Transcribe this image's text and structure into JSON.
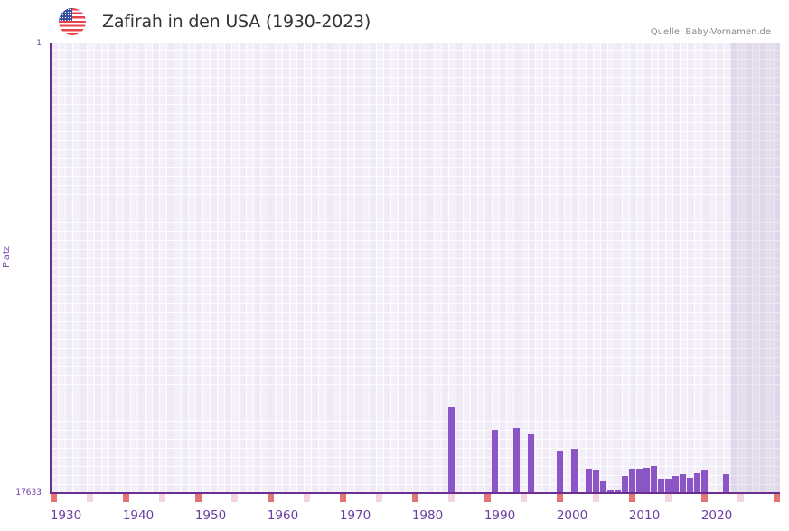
{
  "header": {
    "flag_icon": "us-flag-icon",
    "title": "Zafirah in den USA (1930-2023)",
    "source": "Quelle: Baby-Vornamen.de"
  },
  "chart_data": {
    "type": "bar",
    "title": "Zafirah in den USA (1930-2023)",
    "xlabel": "",
    "ylabel": "Platz",
    "y_inverted": true,
    "ylim": [
      17633,
      1
    ],
    "y_ticks": [
      "1",
      "17633"
    ],
    "x_range": [
      1928,
      2028
    ],
    "x_ticks": [
      "1930",
      "1940",
      "1950",
      "1960",
      "1970",
      "1980",
      "1990",
      "2000",
      "2010",
      "2020"
    ],
    "grid": true,
    "future_shaded_from": 2022,
    "colors": {
      "bar": "#8b55c6",
      "axis": "#6b2f91",
      "decade_marker": "#e57373",
      "half_decade_marker": "#f5d5dd",
      "plot_bg": "#efe9f8"
    },
    "categories": [
      1983,
      1989,
      1992,
      1994,
      1998,
      2000,
      2002,
      2003,
      2004,
      2005,
      2006,
      2007,
      2008,
      2009,
      2010,
      2011,
      2012,
      2013,
      2014,
      2015,
      2016,
      2017,
      2018,
      2021
    ],
    "series": [
      {
        "name": "Platz",
        "values": [
          14263,
          15150,
          15079,
          15327,
          16001,
          15895,
          16711,
          16746,
          17172,
          17527,
          17527,
          16959,
          16711,
          16675,
          16640,
          16569,
          17101,
          17065,
          16959,
          16888,
          17030,
          16853,
          16746,
          16888
        ]
      }
    ]
  }
}
